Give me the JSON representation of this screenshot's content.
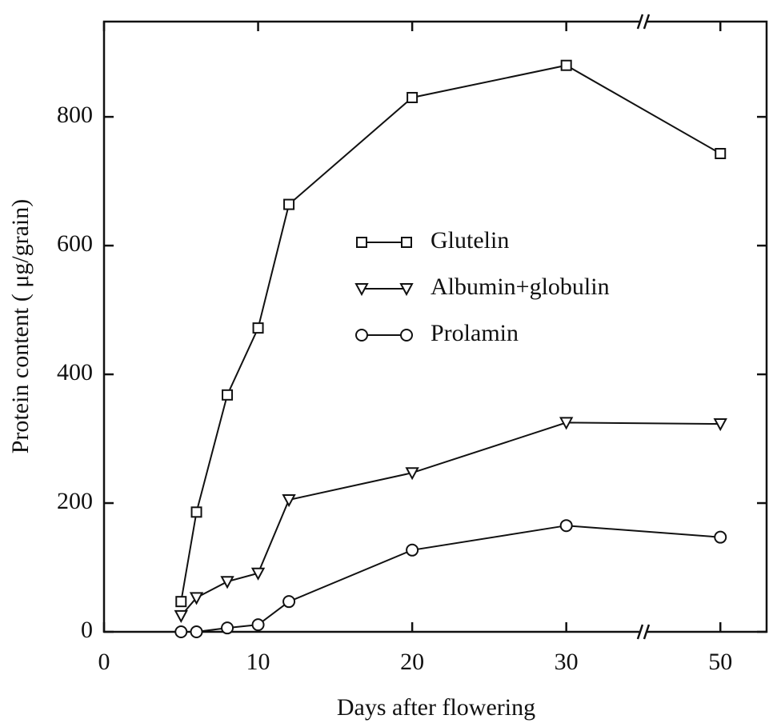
{
  "chart_data": {
    "type": "line",
    "x_label": "Days after flowering",
    "y_label": "Protein content ( μg/grain)",
    "x": [
      5,
      6,
      8,
      10,
      12,
      20,
      30,
      50
    ],
    "series": [
      {
        "name": "Glutelin",
        "color": "#111111",
        "marker": "square",
        "values": [
          47,
          186,
          368,
          472,
          664,
          830,
          880,
          743
        ]
      },
      {
        "name": "Albumin+globulin",
        "color": "#111111",
        "marker": "triangle-down",
        "values": [
          25,
          53,
          78,
          91,
          205,
          247,
          325,
          323
        ]
      },
      {
        "name": "Prolamin",
        "color": "#111111",
        "marker": "circle",
        "values": [
          0,
          0,
          6,
          11,
          47,
          127,
          165,
          147
        ]
      }
    ],
    "xlim": [
      0,
      56
    ],
    "xticks": [
      0,
      10,
      20,
      30,
      50
    ],
    "ylim": [
      0,
      948
    ],
    "yticks": [
      0,
      200,
      400,
      600,
      800
    ],
    "grid": false
  }
}
